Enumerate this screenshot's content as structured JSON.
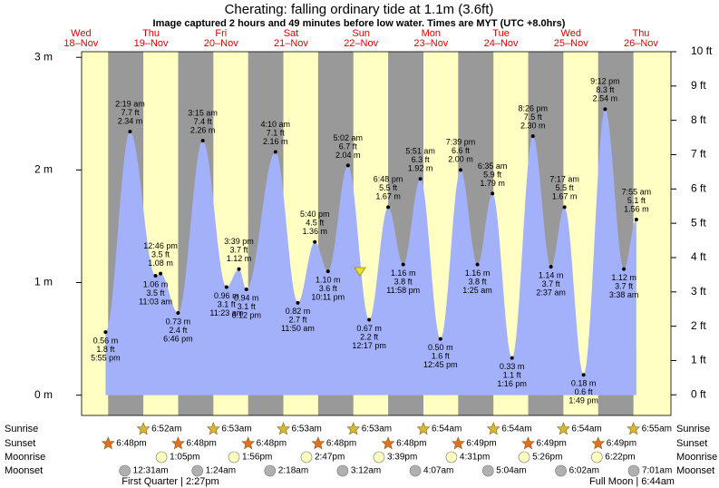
{
  "chart_data": {
    "type": "area",
    "title": "Cherating: falling  ordinary tide at 1.1m (3.6ft)",
    "subtitle": "Image captured 2 hours and 49 minutes before low water. Times are MYT (UTC +8.0hrs)",
    "color": "#a3b1fb",
    "ylim": [
      -0.18,
      3.05
    ],
    "yticks": [
      {
        "value": 0,
        "label": "0 m"
      },
      {
        "value": 1,
        "label": "1 m"
      },
      {
        "value": 2,
        "label": "2 m"
      },
      {
        "value": 3,
        "label": "3 m"
      }
    ],
    "y2lim": [
      -0.6,
      10.0
    ],
    "y2ticks": [
      {
        "value": 0,
        "label": "0 ft"
      },
      {
        "value": 1,
        "label": "1 ft"
      },
      {
        "value": 2,
        "label": "2 ft"
      },
      {
        "value": 3,
        "label": "3 ft"
      },
      {
        "value": 4,
        "label": "4 ft"
      },
      {
        "value": 5,
        "label": "5 ft"
      },
      {
        "value": 6,
        "label": "6 ft"
      },
      {
        "value": 7,
        "label": "7 ft"
      },
      {
        "value": 8,
        "label": "8 ft"
      },
      {
        "value": 9,
        "label": "9 ft"
      },
      {
        "value": 10,
        "label": "10 ft"
      }
    ],
    "row_labels": [
      "Sunrise",
      "Sunset",
      "Moonrise",
      "Moonset"
    ],
    "moon_phases": [
      "First Quarter | 2:27pm",
      "Full Moon | 6:44am"
    ],
    "days": [
      {
        "weekday": "Wed",
        "date": "18–Nov",
        "sunrise": null,
        "sunset": "6:48pm",
        "moonrise": null,
        "moonset": null,
        "tides": [
          {
            "time": "5:55 pm",
            "m": 0.56,
            "m_label": "0.56 m",
            "ft_label": "1.8 ft",
            "kind": "low"
          }
        ]
      },
      {
        "weekday": "Thu",
        "date": "19–Nov",
        "sunrise": "6:52am",
        "sunset": "6:48pm",
        "moonrise": "1:05pm",
        "moonset": "12:31am",
        "tides": [
          {
            "time": "2:19 am",
            "m": 2.34,
            "m_label": "2.34 m",
            "ft_label": "7.7 ft",
            "kind": "high"
          },
          {
            "time": "11:03 am",
            "m": 1.06,
            "m_label": "1.06 m",
            "ft_label": "3.5 ft",
            "kind": "low"
          },
          {
            "time": "12:46 pm",
            "m": 1.08,
            "m_label": "1.08 m",
            "ft_label": "3.5 ft",
            "kind": "high"
          },
          {
            "time": "6:46 pm",
            "m": 0.73,
            "m_label": "0.73 m",
            "ft_label": "2.4 ft",
            "kind": "low"
          }
        ]
      },
      {
        "weekday": "Fri",
        "date": "20–Nov",
        "sunrise": "6:53am",
        "sunset": "6:48pm",
        "moonrise": "1:56pm",
        "moonset": "1:24am",
        "tides": [
          {
            "time": "3:15 am",
            "m": 2.26,
            "m_label": "2.26 m",
            "ft_label": "7.4 ft",
            "kind": "high"
          },
          {
            "time": "11:23 am",
            "m": 0.96,
            "m_label": "0.96 m",
            "ft_label": "3.1 ft",
            "kind": "low"
          },
          {
            "time": "3:39 pm",
            "m": 1.12,
            "m_label": "1.12 m",
            "ft_label": "3.7 ft",
            "kind": "high"
          },
          {
            "time": "6:12 pm",
            "m": 0.94,
            "m_label": "0.94 m",
            "ft_label": "3.1 ft",
            "kind": "low"
          }
        ]
      },
      {
        "weekday": "Sat",
        "date": "21–Nov",
        "sunrise": "6:53am",
        "sunset": "6:48pm",
        "moonrise": "2:47pm",
        "moonset": "2:18am",
        "tides": [
          {
            "time": "4:10 am",
            "m": 2.16,
            "m_label": "2.16 m",
            "ft_label": "7.1 ft",
            "kind": "high"
          },
          {
            "time": "11:50 am",
            "m": 0.82,
            "m_label": "0.82 m",
            "ft_label": "2.7 ft",
            "kind": "low"
          },
          {
            "time": "5:40 pm",
            "m": 1.36,
            "m_label": "1.36 m",
            "ft_label": "4.5 ft",
            "kind": "high"
          },
          {
            "time": "10:11 pm",
            "m": 1.1,
            "m_label": "1.10 m",
            "ft_label": "3.6 ft",
            "kind": "low"
          }
        ]
      },
      {
        "weekday": "Sun",
        "date": "22–Nov",
        "sunrise": "6:53am",
        "sunset": "6:48pm",
        "moonrise": "3:39pm",
        "moonset": "3:12am",
        "tides": [
          {
            "time": "5:02 am",
            "m": 2.04,
            "m_label": "2.04 m",
            "ft_label": "6.7 ft",
            "kind": "high"
          },
          {
            "time": "12:17 pm",
            "m": 0.67,
            "m_label": "0.67 m",
            "ft_label": "2.2 ft",
            "kind": "low"
          },
          {
            "time": "6:48 pm",
            "m": 1.67,
            "m_label": "1.67 m",
            "ft_label": "5.5 ft",
            "kind": "high"
          },
          {
            "time": "11:58 pm",
            "m": 1.16,
            "m_label": "1.16 m",
            "ft_label": "3.8 ft",
            "kind": "low"
          }
        ]
      },
      {
        "weekday": "Mon",
        "date": "23–Nov",
        "sunrise": "6:54am",
        "sunset": "6:49pm",
        "moonrise": "4:31pm",
        "moonset": "4:07am",
        "tides": [
          {
            "time": "5:51 am",
            "m": 1.92,
            "m_label": "1.92 m",
            "ft_label": "6.3 ft",
            "kind": "high"
          },
          {
            "time": "12:45 pm",
            "m": 0.5,
            "m_label": "0.50 m",
            "ft_label": "1.6 ft",
            "kind": "low"
          },
          {
            "time": "7:39 pm",
            "m": 2.0,
            "m_label": "2.00 m",
            "ft_label": "6.6 ft",
            "kind": "high"
          }
        ]
      },
      {
        "weekday": "Tue",
        "date": "24–Nov",
        "sunrise": "6:54am",
        "sunset": "6:49pm",
        "moonrise": "5:26pm",
        "moonset": "5:04am",
        "tides": [
          {
            "time": "1:25 am",
            "m": 1.16,
            "m_label": "1.16 m",
            "ft_label": "3.8 ft",
            "kind": "low"
          },
          {
            "time": "6:35 am",
            "m": 1.79,
            "m_label": "1.79 m",
            "ft_label": "5.9 ft",
            "kind": "high"
          },
          {
            "time": "1:16 pm",
            "m": 0.33,
            "m_label": "0.33 m",
            "ft_label": "1.1 ft",
            "kind": "low"
          },
          {
            "time": "8:26 pm",
            "m": 2.3,
            "m_label": "2.30 m",
            "ft_label": "7.5 ft",
            "kind": "high"
          }
        ]
      },
      {
        "weekday": "Wed",
        "date": "25–Nov",
        "sunrise": "6:54am",
        "sunset": "6:49pm",
        "moonrise": "6:22pm",
        "moonset": "6:02am",
        "tides": [
          {
            "time": "2:37 am",
            "m": 1.14,
            "m_label": "1.14 m",
            "ft_label": "3.7 ft",
            "kind": "low"
          },
          {
            "time": "7:17 am",
            "m": 1.67,
            "m_label": "1.67 m",
            "ft_label": "5.5 ft",
            "kind": "high"
          },
          {
            "time": "1:49 pm",
            "m": 0.18,
            "m_label": "0.18 m",
            "ft_label": "0.6 ft",
            "kind": "low"
          },
          {
            "time": "9:12 pm",
            "m": 2.54,
            "m_label": "2.54 m",
            "ft_label": "8.3 ft",
            "kind": "high"
          }
        ]
      },
      {
        "weekday": "Thu",
        "date": "26–Nov",
        "sunrise": "6:55am",
        "sunset": null,
        "moonrise": null,
        "moonset": "7:01am",
        "tides": [
          {
            "time": "3:38 am",
            "m": 1.12,
            "m_label": "1.12 m",
            "ft_label": "3.7 ft",
            "kind": "low"
          },
          {
            "time": "7:55 am",
            "m": 1.56,
            "m_label": "1.56 m",
            "ft_label": "5.1 ft",
            "kind": "high"
          }
        ]
      }
    ]
  }
}
